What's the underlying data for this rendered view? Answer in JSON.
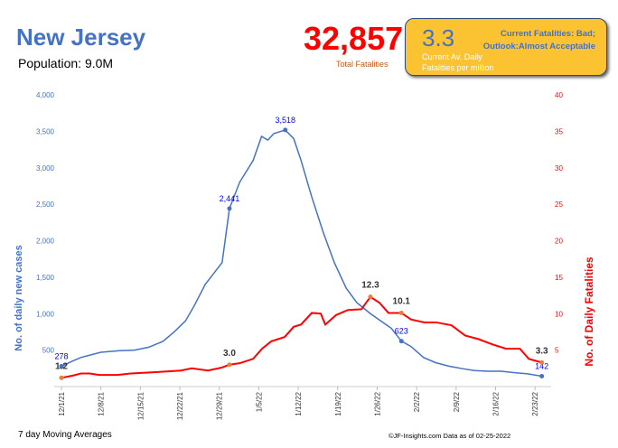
{
  "header": {
    "title": "New Jersey",
    "population": "Population: 9.0M",
    "total_fatalities": "32,857",
    "total_label": "Total Fatalities"
  },
  "box": {
    "value": "3.3",
    "label_line1": "Current Av. Daily",
    "label_line2": "Fatalities per million",
    "outlook_line1": "Current Fatalities: Bad;",
    "outlook_line2": "Outlook:Almost Acceptable"
  },
  "footer": {
    "left": "7 day Moving Averages",
    "right": "©JF-Insights.com  Data as of 02-25-2022"
  },
  "colors": {
    "cases": "#4472c4",
    "deaths": "#ff0000"
  },
  "chart_data": {
    "type": "line",
    "xlabel": "",
    "ylabel": "No. of daily new  cases",
    "y2label": "No. of Daily Fatalities",
    "x_unit": "days since 12/1/21",
    "xticks": [
      {
        "day": 0,
        "label": "12/1/21"
      },
      {
        "day": 7,
        "label": "12/8/21"
      },
      {
        "day": 14,
        "label": "12/15/21"
      },
      {
        "day": 21,
        "label": "12/22/21"
      },
      {
        "day": 28,
        "label": "12/29/21"
      },
      {
        "day": 35,
        "label": "1/5/22"
      },
      {
        "day": 42,
        "label": "1/12/22"
      },
      {
        "day": 49,
        "label": "1/19/22"
      },
      {
        "day": 56,
        "label": "1/26/22"
      },
      {
        "day": 63,
        "label": "2/2/22"
      },
      {
        "day": 70,
        "label": "2/9/22"
      },
      {
        "day": 77,
        "label": "2/16/22"
      },
      {
        "day": 84,
        "label": "2/23/22"
      }
    ],
    "ylim": [
      0,
      4000
    ],
    "yticks": [
      "500",
      "1,000",
      "1,500",
      "2,000",
      "2,500",
      "3,000",
      "3,500",
      "4,000"
    ],
    "y2lim": [
      0,
      40
    ],
    "y2ticks": [
      "5",
      "10",
      "15",
      "20",
      "25",
      "30",
      "35",
      "40"
    ],
    "series": [
      {
        "name": "Cases",
        "axis": "left",
        "x": [
          0,
          2,
          3.5,
          5,
          7,
          10,
          13,
          15.5,
          18,
          20,
          22,
          23.5,
          25.5,
          27,
          28.5,
          29.8,
          31.6,
          34,
          35.5,
          36.6,
          37.7,
          39.7,
          41.2,
          42.5,
          44.4,
          46.5,
          48.4,
          50.5,
          52.4,
          54.8,
          57.2,
          58.5,
          60.3,
          62,
          64.2,
          66.3,
          68.7,
          70.8,
          73.2,
          75.6,
          78,
          80.4,
          82.7,
          85.2
        ],
        "y": [
          278,
          350,
          400,
          430,
          470,
          490,
          500,
          540,
          620,
          750,
          900,
          1100,
          1400,
          1550,
          1700,
          2441,
          2800,
          3100,
          3430,
          3380,
          3470,
          3518,
          3400,
          3100,
          2600,
          2100,
          1700,
          1350,
          1150,
          1000,
          870,
          800,
          623,
          550,
          400,
          330,
          280,
          250,
          220,
          210,
          210,
          190,
          175,
          142
        ],
        "labels": [
          {
            "i": 0,
            "text": "278"
          },
          {
            "i": 15,
            "text": "2,441"
          },
          {
            "i": 21,
            "text": "3,518"
          },
          {
            "i": 32,
            "text": "623"
          },
          {
            "i": 43,
            "text": "142"
          }
        ]
      },
      {
        "name": "Fatalities",
        "axis": "right",
        "x": [
          0,
          2,
          3.5,
          5,
          6.7,
          9.9,
          12.3,
          17.1,
          21.2,
          23.1,
          26,
          28.4,
          29.8,
          31.6,
          34,
          35.6,
          37.2,
          39.6,
          41.2,
          42.5,
          44.4,
          46,
          46.8,
          48.7,
          50.8,
          53.2,
          54.8,
          56.4,
          58,
          60.3,
          62,
          64.4,
          66.5,
          69.2,
          71.6,
          74,
          76.4,
          78.8,
          81.3,
          82.9,
          85.2
        ],
        "y": [
          1.2,
          1.5,
          1.8,
          1.8,
          1.6,
          1.6,
          1.8,
          2.0,
          2.2,
          2.5,
          2.2,
          2.6,
          3.0,
          3.2,
          3.8,
          5.2,
          6.2,
          6.8,
          8.2,
          8.5,
          10.1,
          10.0,
          8.5,
          9.8,
          10.5,
          10.6,
          12.3,
          11.5,
          10.1,
          10.1,
          9.2,
          8.8,
          8.8,
          8.4,
          7.0,
          6.5,
          5.8,
          5.2,
          5.2,
          3.8,
          3.3
        ],
        "labels": [
          {
            "i": 0,
            "text": "1.2"
          },
          {
            "i": 12,
            "text": "3.0"
          },
          {
            "i": 26,
            "text": "12.3"
          },
          {
            "i": 29,
            "text": "10.1"
          },
          {
            "i": 40,
            "text": "3.3"
          }
        ]
      }
    ]
  }
}
